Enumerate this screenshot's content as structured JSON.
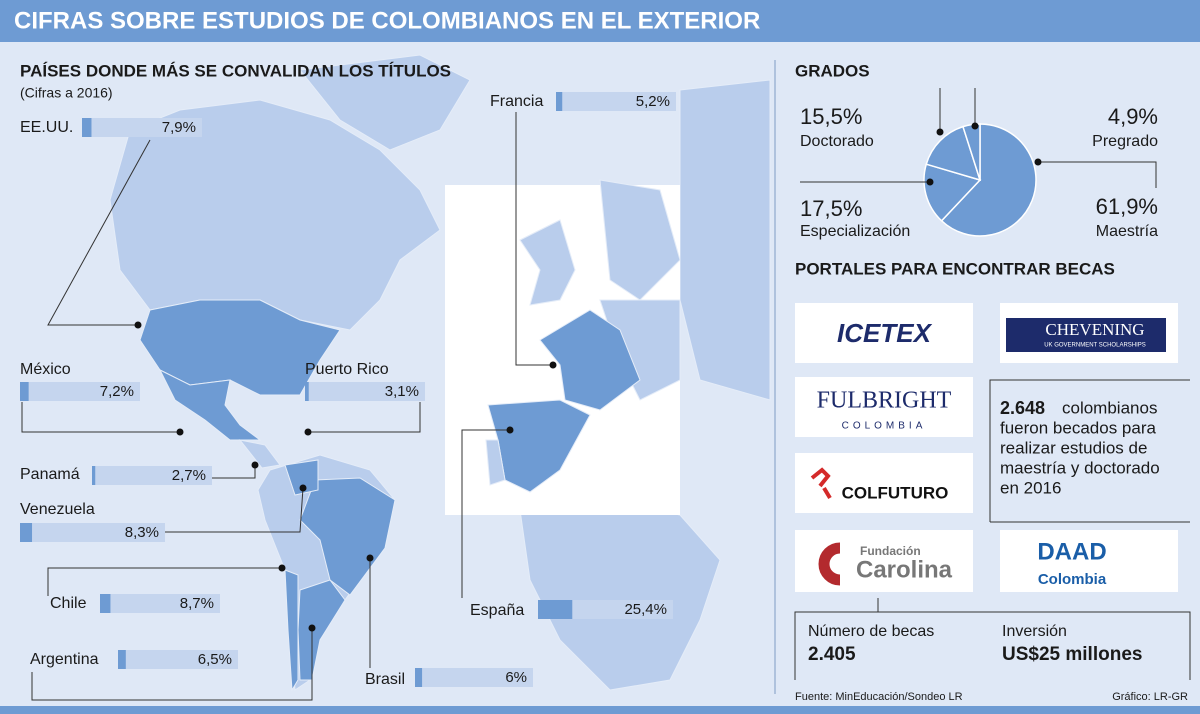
{
  "title": "CIFRAS SOBRE ESTUDIOS DE COLOMBIANOS EN EL EXTERIOR",
  "chart_data": [
    {
      "type": "bar",
      "title": "PAÍSES DONDE MÁS SE CONVALIDAN LOS TÍTULOS",
      "subtitle": "(Cifras a 2016)",
      "categories": [
        "EE.UU.",
        "Francia",
        "México",
        "Puerto Rico",
        "Panamá",
        "Venezuela",
        "Chile",
        "España",
        "Argentina",
        "Brasil"
      ],
      "values": [
        7.9,
        5.2,
        7.2,
        3.1,
        2.7,
        8.3,
        8.7,
        25.4,
        6.5,
        6
      ],
      "value_labels": [
        "7,9%",
        "5,2%",
        "7,2%",
        "3,1%",
        "2,7%",
        "8,3%",
        "8,7%",
        "25,4%",
        "6,5%",
        "6%"
      ],
      "xlim": [
        0,
        100
      ],
      "color": "#6e9bd3",
      "track_color": "#c5d5ee"
    },
    {
      "type": "pie",
      "title": "GRADOS",
      "categories": [
        "Maestría",
        "Especialización",
        "Doctorado",
        "Pregrado"
      ],
      "values": [
        61.9,
        17.5,
        15.5,
        4.9
      ],
      "value_labels": [
        "61,9%",
        "17,5%",
        "15,5%",
        "4,9%"
      ],
      "color": "#6e9bd3"
    }
  ],
  "portals": {
    "title": "PORTALES PARA ENCONTRAR BECAS",
    "logos": [
      "ICETEX",
      "CHEVENING",
      "UK GOVERNMENT SCHOLARSHIPS",
      "FULBRIGHT",
      "COLOMBIA",
      "COLFUTURO",
      "Fundación",
      "Carolina",
      "DAAD",
      "Colombia"
    ]
  },
  "note": {
    "number": "2.648",
    "text": [
      "colombianos",
      "fueron becados para",
      "realizar estudios de",
      "maestría y doctorado",
      "en 2016"
    ]
  },
  "stats": [
    {
      "label": "Número de becas",
      "value": "2.405"
    },
    {
      "label": "Inversión",
      "value": "US$25 millones"
    }
  ],
  "footer": {
    "source": "Fuente: MinEducación/Sondeo LR",
    "credit": "Gráfico: LR-GR"
  }
}
